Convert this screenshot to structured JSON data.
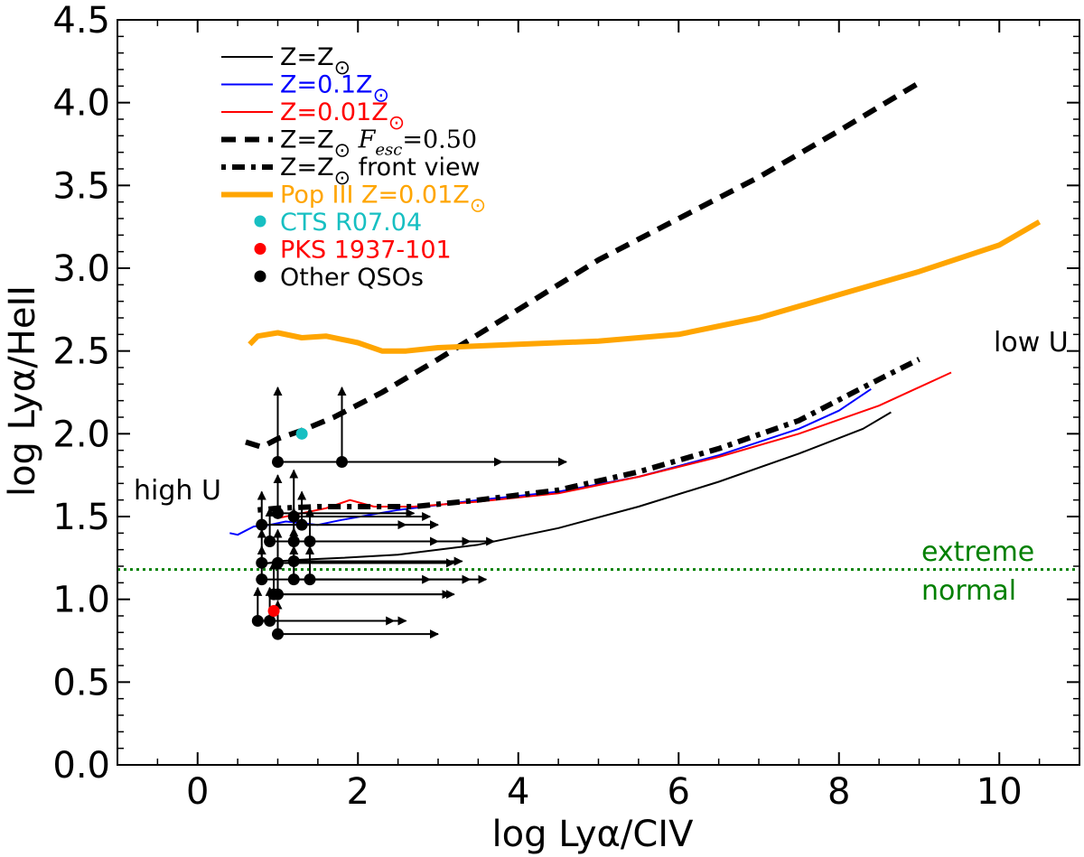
{
  "chart_data": {
    "type": "line",
    "xlabel": "log Lyα/CIV",
    "ylabel": "log Lyα/HeII",
    "xlim": [
      -1.0,
      11.0
    ],
    "ylim": [
      0.0,
      4.5
    ],
    "x_ticks": [
      "0",
      "2",
      "4",
      "6",
      "8",
      "10"
    ],
    "y_ticks": [
      "0.0",
      "0.5",
      "1.0",
      "1.5",
      "2.0",
      "2.5",
      "3.0",
      "3.5",
      "4.0",
      "4.5"
    ],
    "series": [
      {
        "name": "Z=Z⊙",
        "color": "#000000",
        "style": "solid-thin",
        "x": [
          0.8,
          1.0,
          1.3,
          1.8,
          2.5,
          3.5,
          4.5,
          5.5,
          6.5,
          7.5,
          8.3,
          8.65
        ],
        "y": [
          1.21,
          1.23,
          1.24,
          1.25,
          1.27,
          1.33,
          1.43,
          1.56,
          1.71,
          1.88,
          2.03,
          2.13
        ]
      },
      {
        "name": "Z=0.1Z⊙",
        "color": "#0000ff",
        "style": "solid-thin",
        "x": [
          0.4,
          0.5,
          0.7,
          0.9,
          1.1,
          1.3,
          1.5,
          1.8,
          2.5,
          3.5,
          4.5,
          5.5,
          6.5,
          7.5,
          8.0,
          8.4
        ],
        "y": [
          1.4,
          1.39,
          1.44,
          1.45,
          1.47,
          1.46,
          1.45,
          1.48,
          1.54,
          1.6,
          1.65,
          1.74,
          1.87,
          2.03,
          2.14,
          2.27
        ]
      },
      {
        "name": "Z=0.01Z⊙",
        "color": "#ff0000",
        "style": "solid-thin",
        "x": [
          1.0,
          1.3,
          1.6,
          1.9,
          2.2,
          2.7,
          3.5,
          4.5,
          5.5,
          6.5,
          7.5,
          8.5,
          9.4
        ],
        "y": [
          1.49,
          1.52,
          1.55,
          1.6,
          1.56,
          1.56,
          1.59,
          1.64,
          1.74,
          1.86,
          2.0,
          2.17,
          2.37
        ]
      },
      {
        "name": "Z=Z⊙ F_esc=0.50",
        "color": "#000000",
        "style": "dashed-thick",
        "x": [
          0.6,
          0.8,
          1.0,
          1.3,
          1.7,
          2.3,
          3.0,
          4.0,
          5.0,
          6.0,
          7.0,
          8.0,
          9.0
        ],
        "y": [
          1.95,
          1.92,
          1.97,
          2.02,
          2.1,
          2.25,
          2.45,
          2.75,
          3.05,
          3.3,
          3.55,
          3.83,
          4.12
        ]
      },
      {
        "name": "Z=Z⊙ front view",
        "color": "#000000",
        "style": "dotdash-thick",
        "x": [
          0.75,
          1.0,
          1.5,
          2.0,
          2.7,
          3.5,
          4.5,
          5.5,
          6.5,
          7.5,
          8.3,
          9.0
        ],
        "y": [
          1.54,
          1.55,
          1.56,
          1.56,
          1.56,
          1.6,
          1.66,
          1.77,
          1.91,
          2.08,
          2.28,
          2.45
        ]
      },
      {
        "name": "Pop III Z=0.01Z⊙",
        "color": "#ffa500",
        "style": "solid-thick",
        "x": [
          0.65,
          0.75,
          1.0,
          1.3,
          1.6,
          2.0,
          2.3,
          2.6,
          3.0,
          4.0,
          5.0,
          6.0,
          7.0,
          8.0,
          9.0,
          10.0,
          10.5
        ],
        "y": [
          2.54,
          2.59,
          2.61,
          2.58,
          2.59,
          2.55,
          2.5,
          2.5,
          2.52,
          2.54,
          2.56,
          2.6,
          2.7,
          2.84,
          2.98,
          3.14,
          3.28
        ]
      }
    ],
    "points": [
      {
        "name": "CTS R07.04",
        "color": "#17bfc2",
        "x": 1.3,
        "y": 2.0
      },
      {
        "name": "PKS 1937-101",
        "color": "#ff0000",
        "x": 0.95,
        "y": 0.93
      }
    ],
    "qso_points": [
      {
        "x": 1.8,
        "y": 1.83,
        "up": 0.45,
        "right": 2.8
      },
      {
        "x": 1.0,
        "y": 1.83,
        "up": 0.45,
        "right": 2.8
      },
      {
        "x": 1.0,
        "y": 1.52,
        "up": 0.23,
        "right": 1.7
      },
      {
        "x": 1.2,
        "y": 1.5,
        "up": 0.28,
        "right": 1.7
      },
      {
        "x": 1.3,
        "y": 1.45,
        "up": 0.2,
        "right": 1.7
      },
      {
        "x": 0.8,
        "y": 1.45,
        "up": 0.2,
        "right": 1.8
      },
      {
        "x": 1.4,
        "y": 1.35,
        "up": 0.2,
        "right": 2.3
      },
      {
        "x": 1.2,
        "y": 1.35,
        "up": 0.2,
        "right": 2.2
      },
      {
        "x": 0.9,
        "y": 1.35,
        "up": 0.2,
        "right": 2.1
      },
      {
        "x": 1.2,
        "y": 1.23,
        "up": 0.2,
        "right": 2.1
      },
      {
        "x": 1.0,
        "y": 1.22,
        "up": 0.2,
        "right": 2.2
      },
      {
        "x": 0.8,
        "y": 1.22,
        "up": 0.2,
        "right": 2.4
      },
      {
        "x": 1.4,
        "y": 1.12,
        "up": 0.2,
        "right": 2.2
      },
      {
        "x": 1.2,
        "y": 1.12,
        "up": 0.2,
        "right": 2.2
      },
      {
        "x": 0.8,
        "y": 1.12,
        "up": 0.2,
        "right": 2.1
      },
      {
        "x": 1.0,
        "y": 1.03,
        "up": 0.2,
        "right": 2.2
      },
      {
        "x": 0.95,
        "y": 1.03,
        "up": 0.2,
        "right": 2.2
      },
      {
        "x": 0.9,
        "y": 0.87,
        "up": 0.2,
        "right": 1.7
      },
      {
        "x": 0.75,
        "y": 0.87,
        "up": 0.2,
        "right": 1.7
      },
      {
        "x": 1.0,
        "y": 0.79,
        "up": 0.2,
        "right": 2.0
      }
    ],
    "hline": {
      "y": 1.18,
      "color": "#008000",
      "style": "dotted"
    },
    "legend": {
      "position": "top-left",
      "entries": [
        {
          "label": "Z=Z",
          "sub": "⊙",
          "color": "#000000",
          "marker": "solid-thin"
        },
        {
          "label": "Z=0.1Z",
          "sub": "⊙",
          "color": "#0000ff",
          "marker": "solid-thin"
        },
        {
          "label": "Z=0.01Z",
          "sub": "⊙",
          "color": "#ff0000",
          "marker": "solid-thin"
        },
        {
          "label": "Z=Z",
          "sub": "⊙",
          "extra": "F",
          "extra_sub": "esc",
          "extra_tail": "=0.50",
          "color": "#000000",
          "marker": "dashed-thick"
        },
        {
          "label": "Z=Z",
          "sub": "⊙",
          "extra": "front view",
          "color": "#000000",
          "marker": "dotdash-thick"
        },
        {
          "label": "Pop III Z=0.01Z",
          "sub": "⊙",
          "color": "#ffa500",
          "marker": "solid-thick"
        },
        {
          "label": "CTS R07.04",
          "color": "#17bfc2",
          "marker": "dot"
        },
        {
          "label": "PKS 1937-101",
          "color": "#ff0000",
          "marker": "dot"
        },
        {
          "label": "Other QSOs",
          "color": "#000000",
          "marker": "dot"
        }
      ]
    },
    "annotations": [
      {
        "text": "high U",
        "color": "#000000"
      },
      {
        "text": "low U",
        "color": "#000000"
      },
      {
        "text": "extreme",
        "color": "#008000"
      },
      {
        "text": "normal",
        "color": "#008000"
      }
    ]
  }
}
